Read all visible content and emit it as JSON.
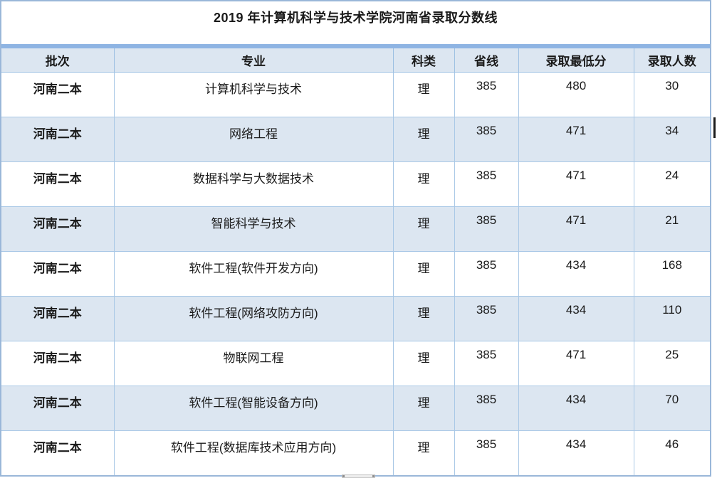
{
  "title": "2019 年计算机科学与技术学院河南省录取分数线",
  "table": {
    "columns": [
      "批次",
      "专业",
      "科类",
      "省线",
      "录取最低分",
      "录取人数"
    ],
    "rows": [
      [
        "河南二本",
        "计算机科学与技术",
        "理",
        "385",
        "480",
        "30"
      ],
      [
        "河南二本",
        "网络工程",
        "理",
        "385",
        "471",
        "34"
      ],
      [
        "河南二本",
        "数据科学与大数据技术",
        "理",
        "385",
        "471",
        "24"
      ],
      [
        "河南二本",
        "智能科学与技术",
        "理",
        "385",
        "471",
        "21"
      ],
      [
        "河南二本",
        "软件工程(软件开发方向)",
        "理",
        "385",
        "434",
        "168"
      ],
      [
        "河南二本",
        "软件工程(网络攻防方向)",
        "理",
        "385",
        "434",
        "110"
      ],
      [
        "河南二本",
        "物联网工程",
        "理",
        "385",
        "471",
        "25"
      ],
      [
        "河南二本",
        "软件工程(智能设备方向)",
        "理",
        "385",
        "434",
        "70"
      ],
      [
        "河南二本",
        "软件工程(数据库技术应用方向)",
        "理",
        "385",
        "434",
        "46"
      ]
    ]
  },
  "colors": {
    "header_band": "#8eb4e3",
    "alt_row_fill": "#dce6f1",
    "cell_border": "#a9c8e6",
    "outer_border": "#9ab7d9",
    "text": "#1a1a1a"
  }
}
